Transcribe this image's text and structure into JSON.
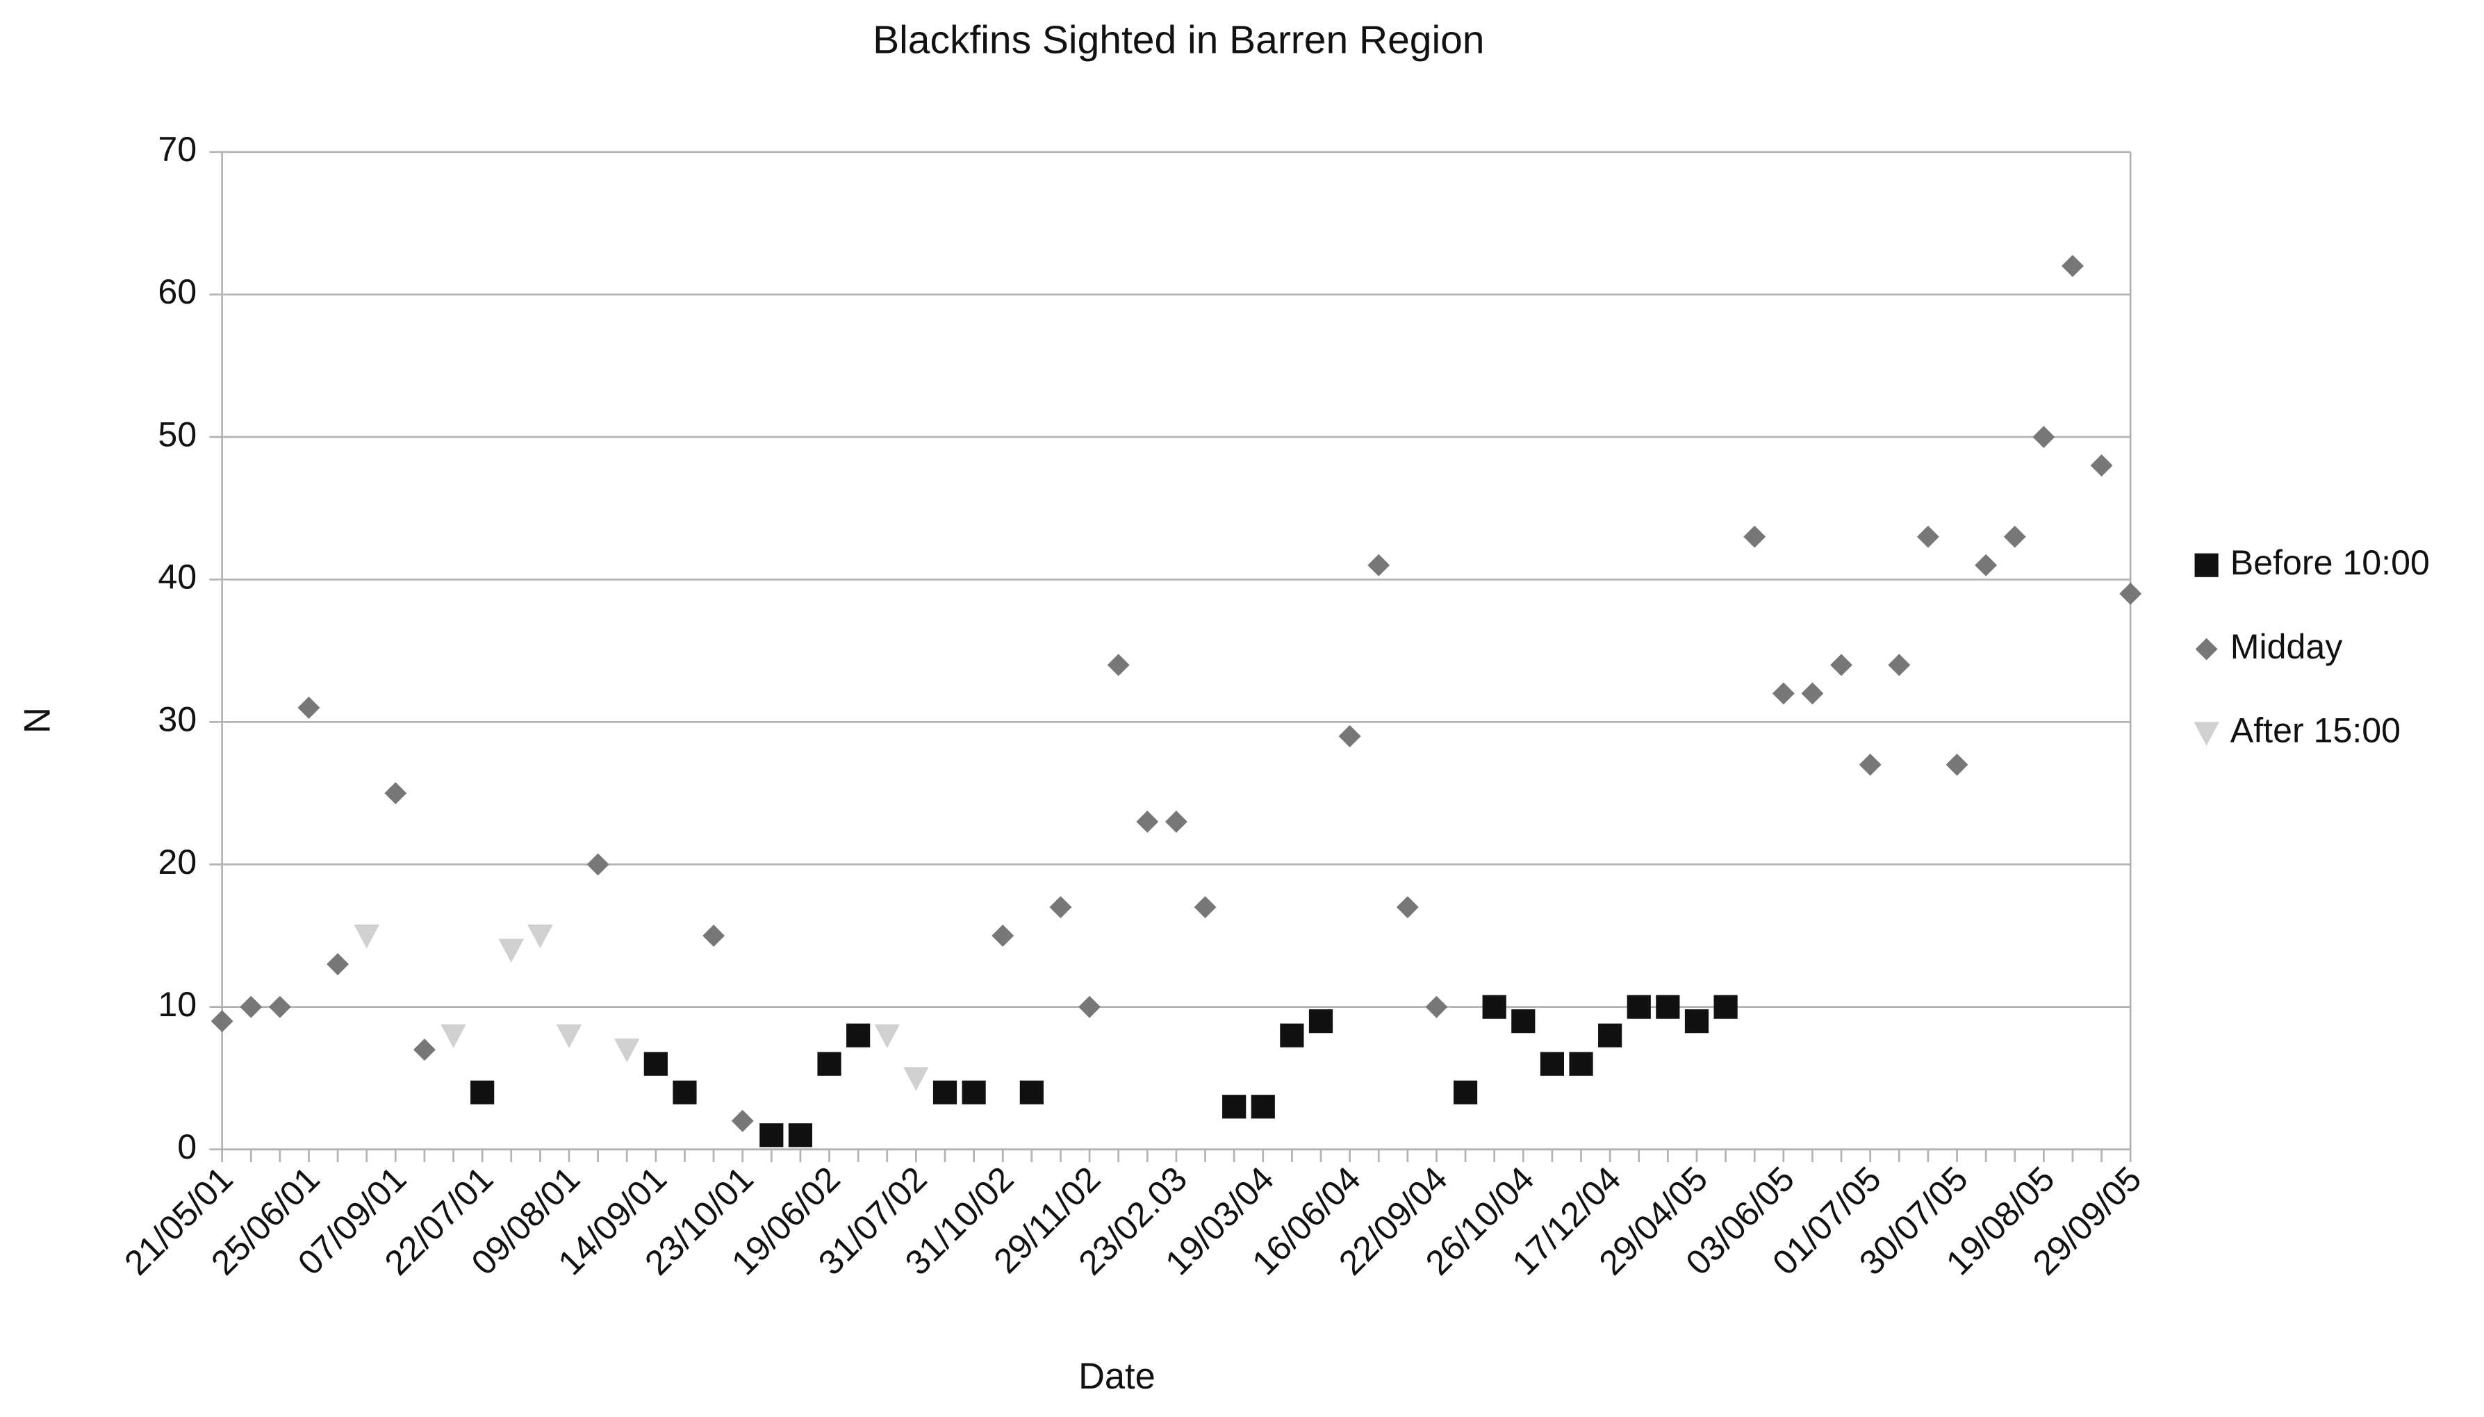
{
  "chart_data": {
    "type": "scatter",
    "title": "Blackfins Sighted in  Barren Region",
    "x_label": "Date",
    "y_label": "N",
    "categories": [
      "21/05/01",
      null,
      null,
      "25/06/01",
      null,
      null,
      "07/09/01",
      null,
      null,
      "22/07/01",
      null,
      null,
      "09/08/01",
      null,
      null,
      "14/09/01",
      null,
      null,
      "23/10/01",
      null,
      null,
      "19/06/02",
      null,
      null,
      "31/07/02",
      null,
      null,
      "31/10/02",
      null,
      null,
      "29/11/02",
      null,
      null,
      "23/02.03",
      null,
      null,
      "19/03/04",
      null,
      null,
      "16/06/04",
      null,
      null,
      "22/09/04",
      null,
      null,
      "26/10/04",
      null,
      null,
      "17/12/04",
      null,
      null,
      "29/04/05",
      null,
      null,
      "03/06/05",
      null,
      null,
      "01/07/05",
      null,
      null,
      "30/07/05",
      null,
      null,
      "19/08/05",
      null,
      null,
      "29/09/05"
    ],
    "series": [
      {
        "name": "Before 10:00",
        "color": "#111111",
        "marker": "square",
        "values": [
          null,
          null,
          null,
          null,
          null,
          null,
          null,
          null,
          null,
          4,
          null,
          null,
          null,
          null,
          null,
          6,
          4,
          null,
          null,
          1,
          1,
          6,
          8,
          null,
          null,
          4,
          4,
          null,
          4,
          null,
          null,
          null,
          null,
          null,
          null,
          3,
          3,
          8,
          9,
          null,
          null,
          null,
          null,
          4,
          10,
          9,
          6,
          6,
          8,
          10,
          10,
          9,
          10,
          null,
          null,
          null,
          null,
          null,
          null,
          null,
          null,
          null,
          null,
          null,
          null,
          null,
          null
        ]
      },
      {
        "name": "Midday",
        "color": "#777777",
        "marker": "diamond",
        "values": [
          9,
          10,
          10,
          31,
          13,
          null,
          25,
          7,
          null,
          null,
          null,
          null,
          null,
          20,
          null,
          null,
          null,
          15,
          2,
          null,
          null,
          null,
          null,
          null,
          null,
          null,
          null,
          15,
          null,
          17,
          10,
          34,
          23,
          23,
          17,
          null,
          null,
          null,
          null,
          29,
          41,
          17,
          10,
          null,
          null,
          null,
          null,
          null,
          null,
          null,
          null,
          null,
          null,
          43,
          32,
          32,
          34,
          27,
          34,
          43,
          27,
          41,
          43,
          50,
          62,
          48,
          39
        ]
      },
      {
        "name": "After 15:00",
        "color": "#d0d0d0",
        "marker": "triangle",
        "values": [
          null,
          null,
          null,
          null,
          null,
          15,
          null,
          null,
          8,
          null,
          14,
          15,
          8,
          null,
          7,
          null,
          null,
          null,
          null,
          null,
          null,
          null,
          null,
          8,
          5,
          null,
          null,
          null,
          null,
          null,
          null,
          null,
          null,
          null,
          null,
          null,
          null,
          null,
          null,
          null,
          null,
          null,
          null,
          null,
          null,
          null,
          null,
          null,
          null,
          null,
          null,
          null,
          null,
          null,
          null,
          null,
          null,
          null,
          null,
          null,
          null,
          null,
          null,
          null,
          null,
          null,
          null
        ]
      }
    ],
    "ylim": [
      0,
      70
    ],
    "yticks": [
      0,
      10,
      20,
      30,
      40,
      50,
      60,
      70
    ],
    "grid": true,
    "legend": "right"
  }
}
